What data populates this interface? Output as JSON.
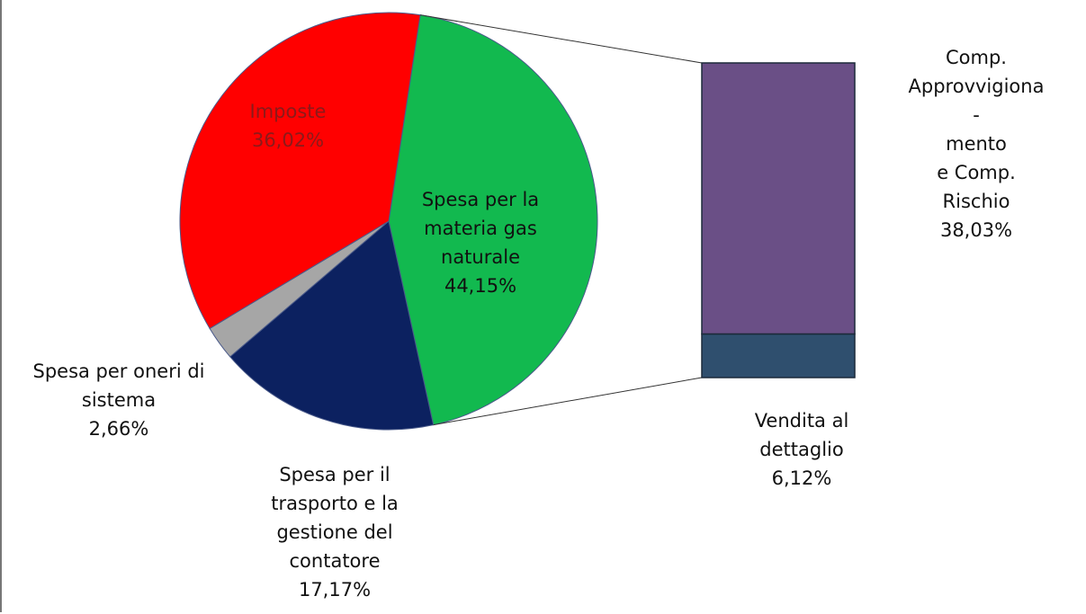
{
  "chart_data": {
    "type": "bar-of-pie",
    "categories": [
      "Spesa per la\nmateria gas\nnaturale",
      "Spesa per il\ntrasporto e la\ngestione del\ncontatore",
      "Spesa per oneri di\nsistema",
      "Imposte"
    ],
    "values": [
      44.15,
      17.17,
      2.66,
      36.02
    ],
    "value_labels": [
      "44,15%",
      "17,17%",
      "2,66%",
      "36,02%"
    ],
    "colors": [
      "#12b94f",
      "#0c2160",
      "#a6a6a6",
      "#ff0000"
    ],
    "secondary": {
      "categories": [
        "Comp.\nApprovvigiona -\nmento\ne  Comp. Rischio",
        "Vendita al\ndettaglio"
      ],
      "values": [
        38.03,
        6.12
      ],
      "value_labels": [
        "38,03%",
        "6,12%"
      ],
      "colors": [
        "#6a4f86",
        "#2f4f6e"
      ]
    }
  }
}
